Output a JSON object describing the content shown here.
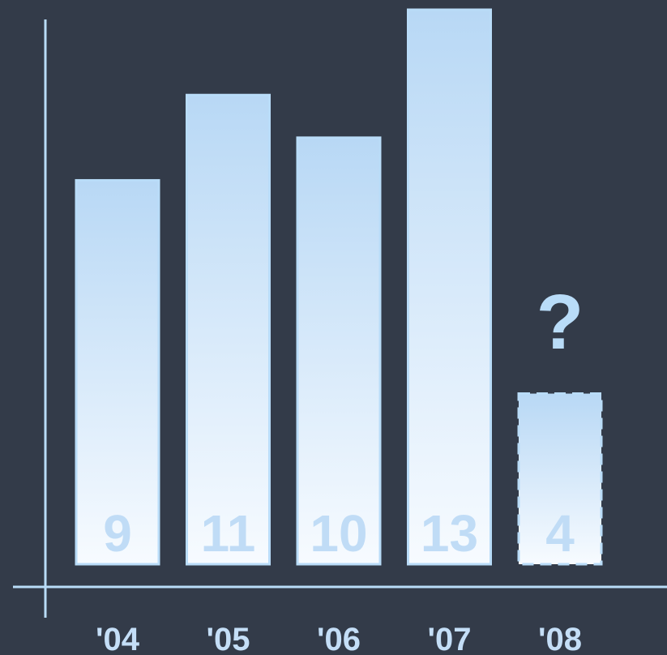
{
  "chart_data": {
    "type": "bar",
    "categories": [
      "'04",
      "'05",
      "'06",
      "'07",
      "'08"
    ],
    "values": [
      9,
      11,
      10,
      13,
      4
    ],
    "data_labels": [
      "9",
      "11",
      "10",
      "13",
      "4"
    ],
    "highlight_annotation": "?",
    "highlight_category": "'08",
    "title": "",
    "xlabel": "",
    "ylabel": "",
    "ylim": [
      0,
      13
    ],
    "grid": false,
    "legend": "none",
    "colors": {
      "background": "#333b49",
      "bar_top": "#b8d8f5",
      "bar_bottom": "#f7fbff",
      "stroke": "#b9dcf8"
    }
  }
}
